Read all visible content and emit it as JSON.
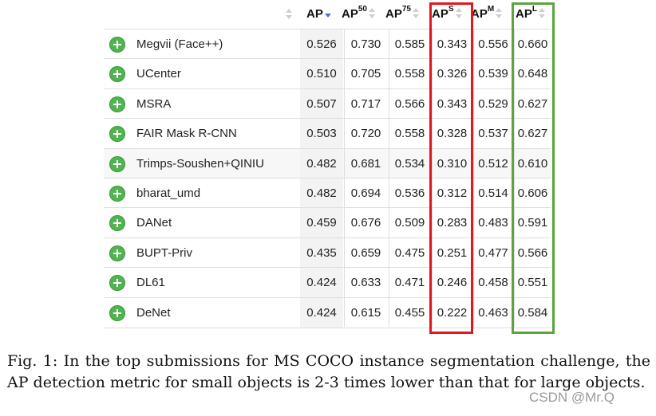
{
  "table": {
    "headers": [
      {
        "base": "AP",
        "sup": ""
      },
      {
        "base": "AP",
        "sup": "50"
      },
      {
        "base": "AP",
        "sup": "75"
      },
      {
        "base": "AP",
        "sup": "S"
      },
      {
        "base": "AP",
        "sup": "M"
      },
      {
        "base": "AP",
        "sup": "L"
      }
    ],
    "sorted_column": "AP",
    "sort_direction": "descending",
    "rows": [
      {
        "team": "Megvii (Face++)",
        "values": [
          "0.526",
          "0.730",
          "0.585",
          "0.343",
          "0.556",
          "0.660"
        ]
      },
      {
        "team": "UCenter",
        "values": [
          "0.510",
          "0.705",
          "0.558",
          "0.326",
          "0.539",
          "0.648"
        ]
      },
      {
        "team": "MSRA",
        "values": [
          "0.507",
          "0.717",
          "0.566",
          "0.343",
          "0.529",
          "0.627"
        ]
      },
      {
        "team": "FAIR Mask R-CNN",
        "values": [
          "0.503",
          "0.720",
          "0.558",
          "0.328",
          "0.537",
          "0.627"
        ]
      },
      {
        "team": "Trimps-Soushen+QINIU",
        "values": [
          "0.482",
          "0.681",
          "0.534",
          "0.310",
          "0.512",
          "0.610"
        ]
      },
      {
        "team": "bharat_umd",
        "values": [
          "0.482",
          "0.694",
          "0.536",
          "0.312",
          "0.514",
          "0.606"
        ]
      },
      {
        "team": "DANet",
        "values": [
          "0.459",
          "0.676",
          "0.509",
          "0.283",
          "0.483",
          "0.591"
        ]
      },
      {
        "team": "BUPT-Priv",
        "values": [
          "0.435",
          "0.659",
          "0.475",
          "0.251",
          "0.477",
          "0.566"
        ]
      },
      {
        "team": "DL61",
        "values": [
          "0.424",
          "0.633",
          "0.471",
          "0.246",
          "0.458",
          "0.551"
        ]
      },
      {
        "team": "DeNet",
        "values": [
          "0.424",
          "0.615",
          "0.455",
          "0.222",
          "0.463",
          "0.584"
        ]
      }
    ],
    "highlight_colors": {
      "APS": "#e8141e",
      "APL": "#5aa63c"
    },
    "expand_icon": "plus-circle-icon"
  },
  "caption": {
    "label": "Fig. 1:",
    "text": "In the top submissions for MS COCO instance segmentation challenge, the AP detection metric for small objects is 2-3 times lower than that for large objects."
  },
  "watermark": "CSDN @Mr.Q"
}
